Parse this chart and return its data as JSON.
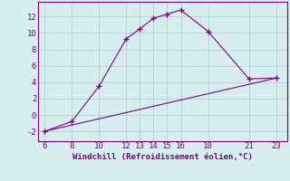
{
  "xlabel": "Windchill (Refroidissement éolien,°C)",
  "background_color": "#d6eeee",
  "line_color": "#800080",
  "grid_color": "#b8d8d8",
  "xticks": [
    6,
    8,
    10,
    12,
    13,
    14,
    15,
    16,
    18,
    21,
    23
  ],
  "yticks": [
    -2,
    0,
    2,
    4,
    6,
    8,
    10,
    12
  ],
  "xlim": [
    5.5,
    23.8
  ],
  "ylim": [
    -3.2,
    13.8
  ],
  "line1_x": [
    6,
    8,
    10,
    12,
    13,
    14,
    15,
    16,
    18,
    21,
    23
  ],
  "line1_y": [
    -2.0,
    -0.8,
    3.5,
    9.3,
    10.5,
    11.8,
    12.3,
    12.8,
    10.2,
    4.4,
    4.5
  ],
  "line2_x": [
    6,
    23
  ],
  "line2_y": [
    -2.0,
    4.5
  ],
  "tick_fontsize": 6.5,
  "xlabel_fontsize": 6.5
}
